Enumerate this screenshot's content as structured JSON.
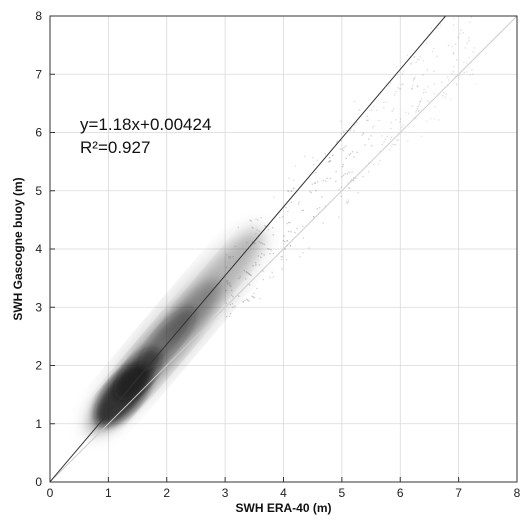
{
  "chart_data": {
    "type": "scatter",
    "title": "",
    "xlabel": "SWH ERA-40 (m)",
    "ylabel": "SWH Gascogne buoy (m)",
    "xlim": [
      0,
      8
    ],
    "ylim": [
      0,
      8
    ],
    "xticks": [
      "0",
      "1",
      "2",
      "3",
      "4",
      "5",
      "6",
      "7",
      "8"
    ],
    "yticks": [
      "0",
      "1",
      "2",
      "3",
      "4",
      "5",
      "6",
      "7",
      "8"
    ],
    "grid": true,
    "annotations": {
      "equation": "y=1.18x+0.00424",
      "r_squared": "R²=0.927"
    },
    "regression": {
      "slope": 1.18,
      "intercept": 0.00424
    },
    "reference_line": {
      "slope": 1,
      "intercept": 0
    },
    "density_core": [
      [
        1.25,
        1.5
      ],
      [
        1.5,
        1.85
      ],
      [
        2.0,
        2.45
      ]
    ],
    "density_extent": [
      [
        0.6,
        0.7
      ],
      [
        1.2,
        1.3
      ],
      [
        2.0,
        2.5
      ],
      [
        3.0,
        3.7
      ],
      [
        3.6,
        4.3
      ]
    ],
    "sparse_points_extent": [
      [
        3.0,
        3.0
      ],
      [
        4.5,
        4.5
      ],
      [
        6.0,
        6.5
      ],
      [
        7.0,
        7.3
      ]
    ],
    "colors": {
      "density": "#111111",
      "regression_line": "#333333",
      "reference_line": "#cccccc",
      "grid": "#d9d9d9"
    }
  }
}
